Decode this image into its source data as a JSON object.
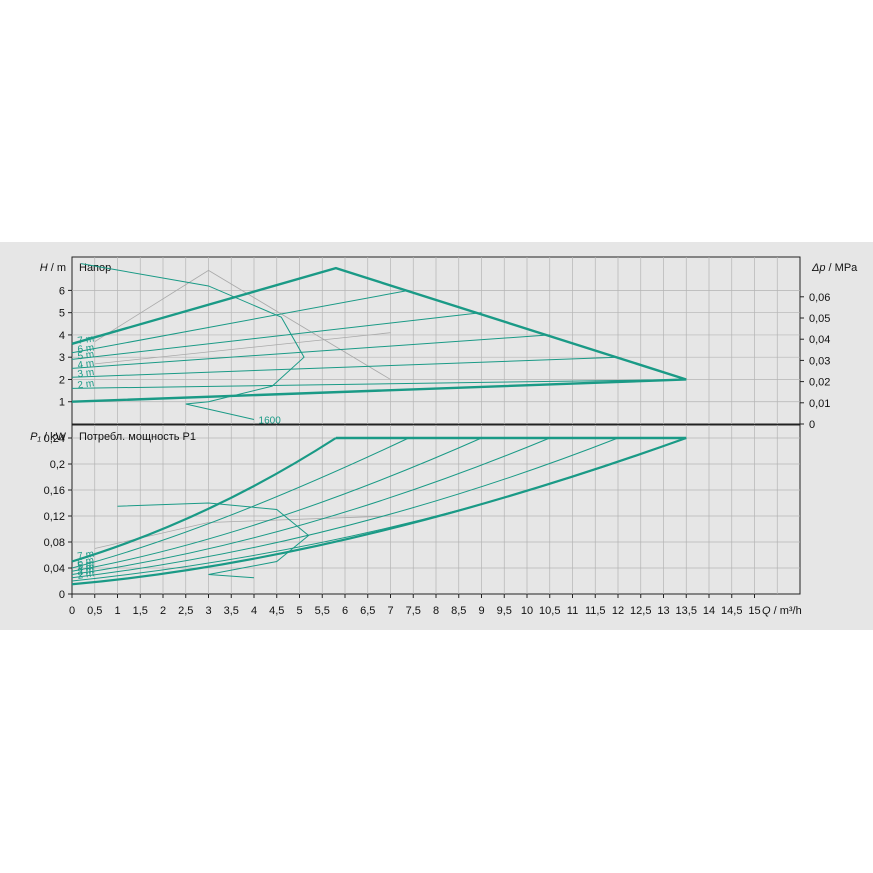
{
  "chart_data": [
    {
      "type": "line",
      "title": "Напор",
      "ylabel_left": {
        "symbol": "H",
        "unit": " / m"
      },
      "ylabel_right": {
        "symbol": "Δp",
        "unit": " / MPa"
      },
      "xlim": [
        0,
        16
      ],
      "ylim": [
        0,
        7.5
      ],
      "grid": true,
      "yticks_left": [
        "1",
        "2",
        "3",
        "4",
        "5",
        "6"
      ],
      "yticks_right": [
        "0",
        "0,01",
        "0,02",
        "0,03",
        "0,04",
        "0,05",
        "0,06"
      ],
      "envelope": [
        [
          0,
          3.6
        ],
        [
          5.8,
          7
        ],
        [
          13.5,
          2
        ],
        [
          0,
          1
        ]
      ],
      "series": [
        {
          "name": "7 m",
          "points": [
            [
              0,
              3.6
            ],
            [
              5.8,
              7
            ]
          ]
        },
        {
          "name": "6 m",
          "points": [
            [
              0,
              3.2
            ],
            [
              7.4,
              6
            ]
          ]
        },
        {
          "name": "5 m",
          "points": [
            [
              0,
              2.9
            ],
            [
              9,
              5
            ]
          ]
        },
        {
          "name": "4 m",
          "points": [
            [
              0,
              2.5
            ],
            [
              10.5,
              4
            ]
          ]
        },
        {
          "name": "3 m",
          "points": [
            [
              0,
              2.1
            ],
            [
              12,
              3
            ]
          ]
        },
        {
          "name": "2 m",
          "points": [
            [
              0,
              1.6
            ],
            [
              13.5,
              2
            ]
          ]
        },
        {
          "name": "",
          "points": [
            [
              0,
              1.0
            ],
            [
              13.5,
              2
            ]
          ]
        }
      ],
      "annotation": {
        "text": "1600",
        "points": [
          [
            0.2,
            7.2
          ],
          [
            3.0,
            6.2
          ],
          [
            4.6,
            4.8
          ],
          [
            5.1,
            3.0
          ],
          [
            4.4,
            1.7
          ],
          [
            3.0,
            1.0
          ],
          [
            2.5,
            0.9
          ],
          [
            4.0,
            0.2
          ]
        ]
      }
    },
    {
      "type": "line",
      "title": "Потребл. мощность P1",
      "ylabel_left": {
        "symbol": "P₁",
        "unit": " / kW"
      },
      "xlabel": {
        "symbol": "Q",
        "unit": " / m³/h"
      },
      "xlim": [
        0,
        16
      ],
      "ylim": [
        0,
        0.26
      ],
      "grid": true,
      "yticks": [
        "0",
        "0,04",
        "0,08",
        "0,12",
        "0,16",
        "0,2",
        "0,24"
      ],
      "xticks": [
        "0",
        "0,5",
        "1",
        "1,5",
        "2",
        "2,5",
        "3",
        "3,5",
        "4",
        "4,5",
        "5",
        "5,5",
        "6",
        "6,5",
        "7",
        "7,5",
        "8",
        "8,5",
        "9",
        "9,5",
        "10",
        "10,5",
        "11",
        "11,5",
        "12",
        "12,5",
        "13",
        "13,5",
        "14",
        "14,5",
        "15"
      ],
      "series": [
        {
          "name": "7 m",
          "points": [
            [
              0,
              0.05
            ],
            [
              3,
              0.12
            ],
            [
              5.8,
              0.24
            ]
          ]
        },
        {
          "name": "6 m",
          "points": [
            [
              0,
              0.04
            ],
            [
              3,
              0.1
            ],
            [
              7.4,
              0.24
            ]
          ]
        },
        {
          "name": "5 m",
          "points": [
            [
              0,
              0.035
            ],
            [
              4,
              0.09
            ],
            [
              9,
              0.24
            ]
          ]
        },
        {
          "name": "4 m",
          "points": [
            [
              0,
              0.03
            ],
            [
              5,
              0.085
            ],
            [
              10.5,
              0.24
            ]
          ]
        },
        {
          "name": "3 m",
          "points": [
            [
              0,
              0.025
            ],
            [
              6,
              0.08
            ],
            [
              12,
              0.24
            ]
          ]
        },
        {
          "name": "2 m",
          "points": [
            [
              0,
              0.02
            ],
            [
              7,
              0.075
            ],
            [
              13.5,
              0.24
            ]
          ]
        },
        {
          "name": "",
          "points": [
            [
              0,
              0.015
            ],
            [
              6,
              0.055
            ],
            [
              13.5,
              0.24
            ]
          ]
        }
      ],
      "top_line": [
        [
          5.8,
          0.24
        ],
        [
          13.5,
          0.24
        ]
      ],
      "annotation": {
        "points": [
          [
            1,
            0.135
          ],
          [
            3,
            0.14
          ],
          [
            4.5,
            0.13
          ],
          [
            5.2,
            0.09
          ],
          [
            4.5,
            0.05
          ],
          [
            3,
            0.03
          ],
          [
            4,
            0.025
          ]
        ]
      }
    }
  ],
  "colors": {
    "primary": "#1a9a86",
    "secondary": "#a9a9a9",
    "grid": "#b4b4b4",
    "background": "#e6e6e6"
  }
}
